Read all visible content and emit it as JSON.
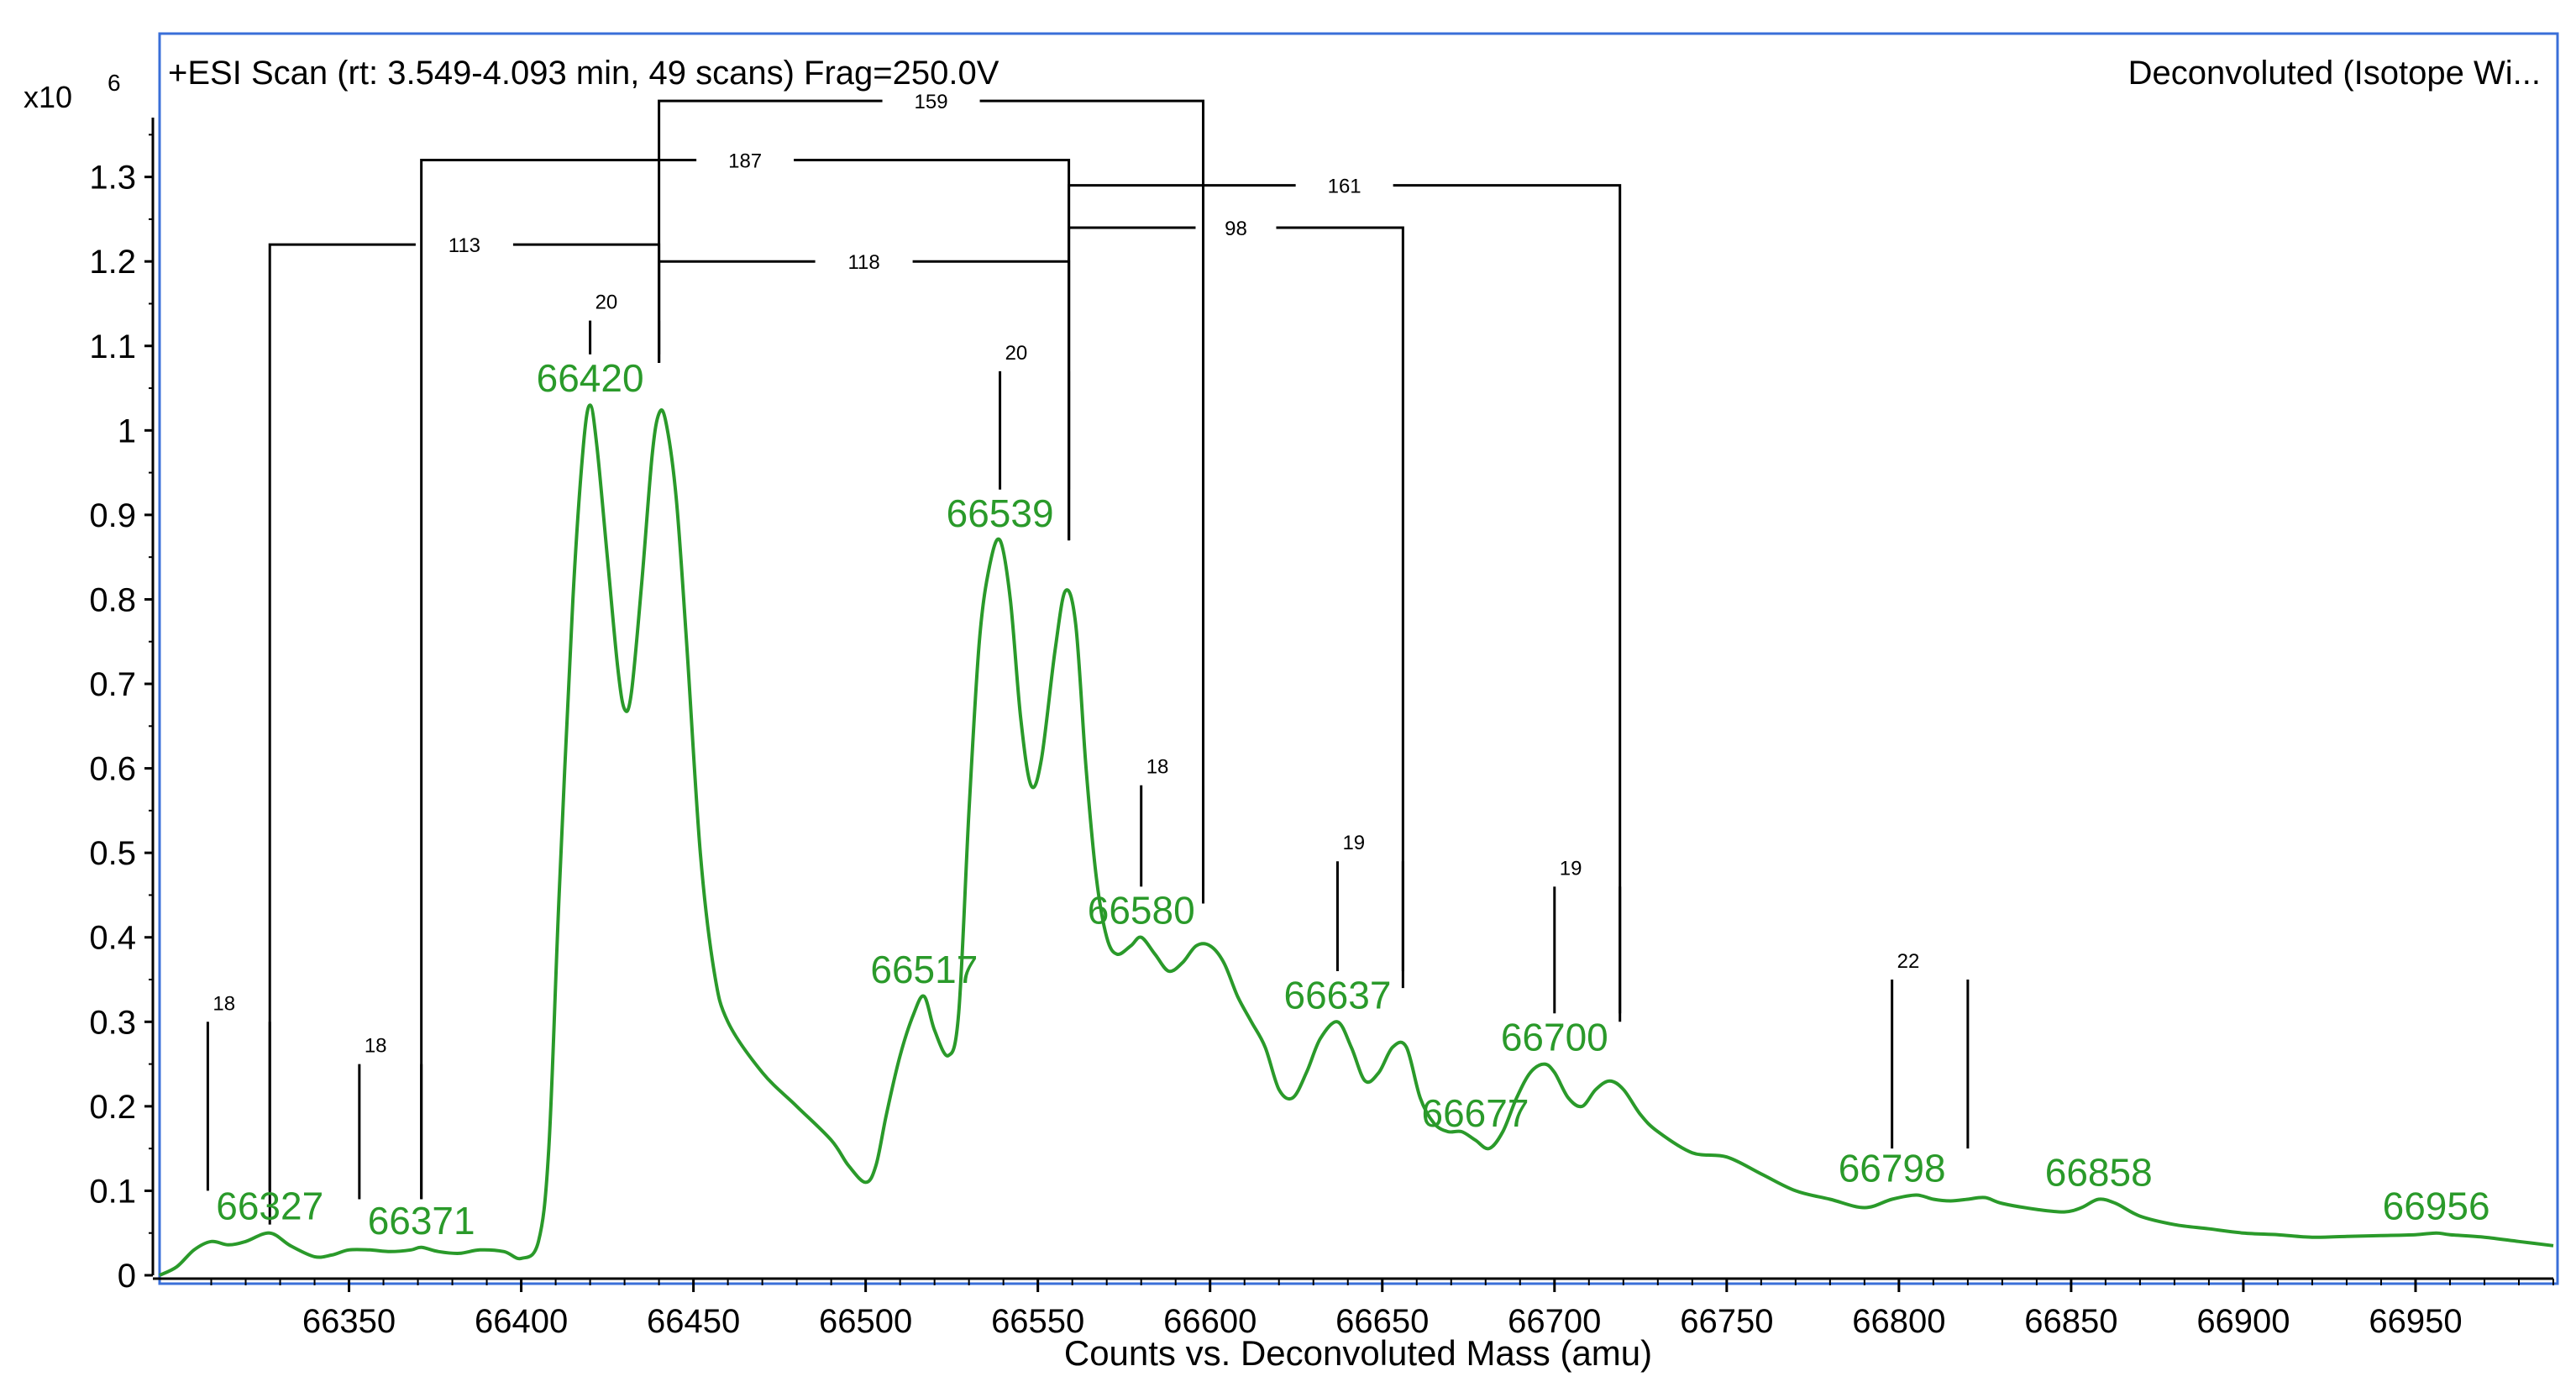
{
  "chart_data": {
    "type": "line",
    "header_left": "+ESI Scan (rt: 3.549-4.093 min, 49 scans) Frag=250.0V",
    "header_right": "Deconvoluted (Isotope Wi...",
    "xlabel": "Counts vs. Deconvoluted Mass (amu)",
    "y_exponent_label": "x10",
    "y_exponent_power": "6",
    "xlim": [
      66295,
      66990
    ],
    "ylim": [
      0,
      1.41
    ],
    "x_ticks": [
      66350,
      66400,
      66450,
      66500,
      66550,
      66600,
      66650,
      66700,
      66750,
      66800,
      66850,
      66900,
      66950
    ],
    "y_ticks": [
      0,
      0.1,
      0.2,
      0.3,
      0.4,
      0.5,
      0.6,
      0.7,
      0.8,
      0.9,
      1,
      1.1,
      1.2,
      1.3
    ],
    "y_tick_labels": [
      "0",
      "0.1",
      "0.2",
      "0.3",
      "0.4",
      "0.5",
      "0.6",
      "0.7",
      "0.8",
      "0.9",
      "1",
      "1.1",
      "1.2",
      "1.3"
    ],
    "line_color": "#2a9a2a",
    "series": [
      {
        "x": [
          66295,
          66300,
          66305,
          66310,
          66315,
          66320,
          66327,
          66333,
          66340,
          66345,
          66350,
          66356,
          66362,
          66368,
          66371,
          66376,
          66382,
          66388,
          66395,
          66400,
          66405,
          66408,
          66411,
          66415,
          66418,
          66420,
          66422,
          66425,
          66428,
          66430,
          66432,
          66435,
          66438,
          66440,
          66442,
          66445,
          66448,
          66452,
          66456,
          66460,
          66470,
          66480,
          66490,
          66495,
          66500,
          66503,
          66506,
          66510,
          66514,
          66517,
          66520,
          66524,
          66527,
          66530,
          66533,
          66536,
          66539,
          66542,
          66545,
          66548,
          66551,
          66555,
          66558,
          66561,
          66564,
          66567,
          66570,
          66573,
          66577,
          66580,
          66584,
          66588,
          66592,
          66596,
          66600,
          66604,
          66608,
          66612,
          66616,
          66620,
          66624,
          66628,
          66632,
          66637,
          66641,
          66645,
          66649,
          66653,
          66657,
          66661,
          66665,
          66669,
          66673,
          66677,
          66681,
          66685,
          66689,
          66693,
          66697,
          66700,
          66704,
          66708,
          66712,
          66716,
          66720,
          66725,
          66730,
          66740,
          66750,
          66760,
          66770,
          66780,
          66790,
          66798,
          66805,
          66810,
          66815,
          66820,
          66825,
          66830,
          66840,
          66848,
          66853,
          66858,
          66863,
          66870,
          66880,
          66890,
          66900,
          66910,
          66920,
          66930,
          66940,
          66950,
          66956,
          66960,
          66970,
          66980,
          66990
        ],
        "y": [
          0.0,
          0.01,
          0.03,
          0.04,
          0.036,
          0.04,
          0.05,
          0.035,
          0.022,
          0.024,
          0.03,
          0.03,
          0.028,
          0.03,
          0.033,
          0.028,
          0.026,
          0.03,
          0.028,
          0.02,
          0.04,
          0.15,
          0.45,
          0.8,
          0.98,
          1.03,
          0.98,
          0.85,
          0.72,
          0.67,
          0.69,
          0.82,
          0.97,
          1.02,
          1.01,
          0.92,
          0.75,
          0.5,
          0.36,
          0.3,
          0.24,
          0.2,
          0.16,
          0.13,
          0.11,
          0.13,
          0.19,
          0.26,
          0.31,
          0.33,
          0.29,
          0.26,
          0.31,
          0.55,
          0.75,
          0.84,
          0.87,
          0.8,
          0.66,
          0.58,
          0.61,
          0.74,
          0.81,
          0.77,
          0.6,
          0.47,
          0.4,
          0.38,
          0.39,
          0.4,
          0.38,
          0.36,
          0.37,
          0.39,
          0.39,
          0.37,
          0.33,
          0.3,
          0.27,
          0.22,
          0.21,
          0.24,
          0.28,
          0.3,
          0.27,
          0.23,
          0.24,
          0.27,
          0.27,
          0.21,
          0.18,
          0.17,
          0.17,
          0.16,
          0.15,
          0.17,
          0.21,
          0.24,
          0.25,
          0.24,
          0.21,
          0.2,
          0.22,
          0.23,
          0.22,
          0.19,
          0.17,
          0.145,
          0.14,
          0.12,
          0.1,
          0.09,
          0.08,
          0.09,
          0.095,
          0.09,
          0.088,
          0.09,
          0.092,
          0.085,
          0.078,
          0.075,
          0.08,
          0.09,
          0.085,
          0.07,
          0.06,
          0.055,
          0.05,
          0.048,
          0.045,
          0.046,
          0.047,
          0.048,
          0.05,
          0.048,
          0.045,
          0.04,
          0.035
        ]
      }
    ],
    "peak_labels": [
      {
        "text": "66327",
        "x": 66327,
        "y": 0.05
      },
      {
        "text": "66371",
        "x": 66371,
        "y": 0.033
      },
      {
        "text": "66420",
        "x": 66420,
        "y": 1.03
      },
      {
        "text": "66517",
        "x": 66517,
        "y": 0.33
      },
      {
        "text": "66539",
        "x": 66539,
        "y": 0.87
      },
      {
        "text": "66580",
        "x": 66580,
        "y": 0.4
      },
      {
        "text": "66637",
        "x": 66637,
        "y": 0.3
      },
      {
        "text": "66677",
        "x": 66677,
        "y": 0.16
      },
      {
        "text": "66700",
        "x": 66700,
        "y": 0.25
      },
      {
        "text": "66798",
        "x": 66798,
        "y": 0.095
      },
      {
        "text": "66858",
        "x": 66858,
        "y": 0.09
      },
      {
        "text": "66956",
        "x": 66956,
        "y": 0.05
      }
    ],
    "small_pairs": [
      {
        "label": "18",
        "x1": 66309,
        "x2": 66327,
        "y_low": 0.1,
        "y_high": 0.3
      },
      {
        "label": "18",
        "x1": 66353,
        "x2": 66371,
        "y_low": 0.09,
        "y_high": 0.25
      },
      {
        "label": "20",
        "x1": 66420,
        "x2": 66440,
        "y_low": 1.09,
        "y_high": 1.13
      },
      {
        "label": "20",
        "x1": 66539,
        "x2": 66559,
        "y_low": 0.93,
        "y_high": 1.07
      },
      {
        "label": "18",
        "x1": 66580,
        "x2": 66598,
        "y_low": 0.46,
        "y_high": 0.58
      },
      {
        "label": "19",
        "x1": 66637,
        "x2": 66656,
        "y_low": 0.36,
        "y_high": 0.49
      },
      {
        "label": "19",
        "x1": 66700,
        "x2": 66719,
        "y_low": 0.31,
        "y_high": 0.46
      },
      {
        "label": "22",
        "x1": 66798,
        "x2": 66820,
        "y_low": 0.15,
        "y_high": 0.35
      }
    ],
    "brackets": [
      {
        "label": "113",
        "x1": 66327,
        "x2": 66440,
        "y_top": 1.22,
        "y1_bottom": 0.06,
        "y2_bottom": 1.08
      },
      {
        "label": "187",
        "x1": 66371,
        "x2": 66559,
        "y_top": 1.32,
        "y1_bottom": 0.09,
        "y2_bottom": 0.87
      },
      {
        "label": "159",
        "x1": 66440,
        "x2": 66598,
        "y_top": 1.39,
        "y1_bottom": 1.08,
        "y2_bottom": 0.44
      },
      {
        "label": "118",
        "x1": 66440,
        "x2": 66559,
        "y_top": 1.2,
        "y1_bottom": 1.08,
        "y2_bottom": 0.87
      },
      {
        "label": "161",
        "x1": 66559,
        "x2": 66719,
        "y_top": 1.29,
        "y1_bottom": 0.87,
        "y2_bottom": 0.3
      },
      {
        "label": "98",
        "x1": 66559,
        "x2": 66656,
        "y_top": 1.24,
        "y1_bottom": 0.87,
        "y2_bottom": 0.34
      }
    ]
  }
}
